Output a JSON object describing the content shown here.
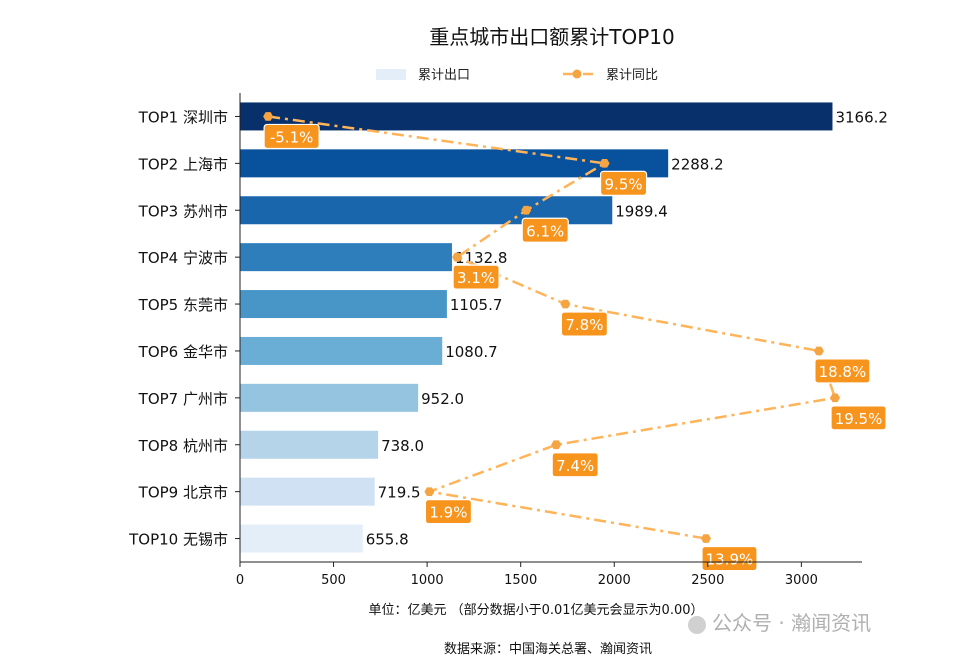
{
  "chart_data": {
    "type": "bar",
    "orientation": "horizontal",
    "title": "重点城市出口额累计TOP10",
    "categories": [
      "TOP1 深圳市",
      "TOP2 上海市",
      "TOP3 苏州市",
      "TOP4 宁波市",
      "TOP5 东莞市",
      "TOP6 金华市",
      "TOP7 广州市",
      "TOP8 杭州市",
      "TOP9 北京市",
      "TOP10 无锡市"
    ],
    "series": [
      {
        "name": "累计出口",
        "type": "bar",
        "values": [
          3166.2,
          2288.2,
          1989.4,
          1132.8,
          1105.7,
          1080.7,
          952.0,
          738.0,
          719.5,
          655.8
        ],
        "value_labels": [
          "3166.2",
          "2288.2",
          "1989.4",
          "1132.8",
          "1105.7",
          "1080.7",
          "952.0",
          "738.0",
          "719.5",
          "655.8"
        ],
        "colors": [
          "#08306b",
          "#08519c",
          "#1966ad",
          "#2f7ebc",
          "#4896c8",
          "#6aaed6",
          "#94c4df",
          "#b5d4e9",
          "#cfe1f2",
          "#e3eef9"
        ]
      },
      {
        "name": "累计同比",
        "type": "line",
        "values": [
          -5.1,
          9.5,
          6.1,
          3.1,
          7.8,
          18.8,
          19.5,
          7.4,
          1.9,
          13.9
        ],
        "value_labels": [
          "-5.1%",
          "9.5%",
          "6.1%",
          "3.1%",
          "7.8%",
          "18.8%",
          "19.5%",
          "7.4%",
          "1.9%",
          "13.9%"
        ],
        "color": "#ffb45a",
        "marker_color": "#f5a444",
        "label_bg": "#f7941d"
      }
    ],
    "xlim": [
      0,
      3324
    ],
    "xticks": [
      "0",
      "500",
      "1000",
      "1500",
      "2000",
      "2500",
      "3000"
    ],
    "yoy_xlim": [
      -6.32,
      20.67
    ],
    "legend": "top-center",
    "grid": false,
    "xlabel": "单位：亿美元  （部分数据小于0.01亿美元会显示为0.00）",
    "source": "数据来源：中国海关总署、瀚闻资讯",
    "watermark": "公众号 · 瀚闻资讯"
  }
}
